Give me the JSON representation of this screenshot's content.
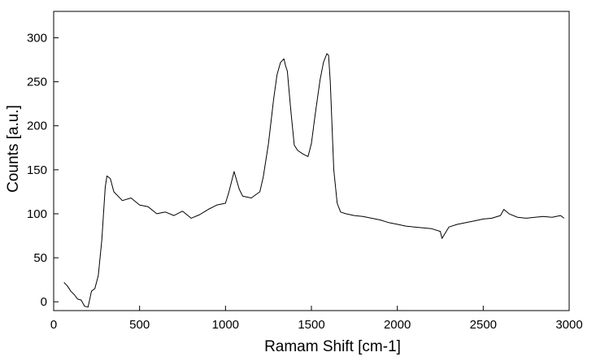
{
  "chart_data": {
    "type": "line",
    "xlabel": "Ramam Shift [cm-1]",
    "ylabel": "Counts [a.u.]",
    "xlim": [
      0,
      3000
    ],
    "ylim": [
      -10,
      330
    ],
    "xticks": [
      0,
      500,
      1000,
      1500,
      2000,
      2500,
      3000
    ],
    "yticks": [
      0,
      50,
      100,
      150,
      200,
      250,
      300
    ],
    "xtick_labels": [
      "0",
      "500",
      "1000",
      "1500",
      "2000",
      "2500",
      "3000"
    ],
    "ytick_labels": [
      "0",
      "50",
      "100",
      "150",
      "200",
      "250",
      "300"
    ],
    "grid": false,
    "legend": "none",
    "line_color": "#000000",
    "series": [
      {
        "x": [
          60,
          80,
          100,
          120,
          140,
          160,
          180,
          200,
          220,
          240,
          260,
          280,
          300,
          310,
          330,
          350,
          400,
          450,
          500,
          550,
          600,
          650,
          700,
          750,
          800,
          850,
          900,
          950,
          1000,
          1020,
          1050,
          1080,
          1100,
          1150,
          1200,
          1220,
          1250,
          1280,
          1300,
          1320,
          1340,
          1350,
          1360,
          1380,
          1400,
          1420,
          1450,
          1480,
          1500,
          1520,
          1550,
          1570,
          1590,
          1600,
          1610,
          1630,
          1650,
          1670,
          1700,
          1750,
          1800,
          1850,
          1900,
          1950,
          2000,
          2050,
          2100,
          2150,
          2200,
          2250,
          2260,
          2300,
          2350,
          2400,
          2450,
          2500,
          2550,
          2600,
          2620,
          2650,
          2700,
          2750,
          2800,
          2850,
          2900,
          2950,
          2970
        ],
        "y": [
          22,
          18,
          12,
          8,
          3,
          2,
          -5,
          -6,
          12,
          15,
          30,
          70,
          130,
          143,
          140,
          125,
          115,
          118,
          110,
          108,
          100,
          102,
          98,
          103,
          95,
          99,
          105,
          110,
          112,
          125,
          148,
          128,
          120,
          118,
          125,
          142,
          180,
          230,
          258,
          272,
          276,
          268,
          262,
          218,
          178,
          172,
          168,
          165,
          180,
          210,
          252,
          272,
          282,
          280,
          250,
          150,
          112,
          102,
          100,
          98,
          97,
          95,
          93,
          90,
          88,
          86,
          85,
          84,
          83,
          80,
          72,
          85,
          88,
          90,
          92,
          94,
          95,
          98,
          105,
          100,
          96,
          95,
          96,
          97,
          96,
          98,
          95
        ]
      }
    ]
  }
}
